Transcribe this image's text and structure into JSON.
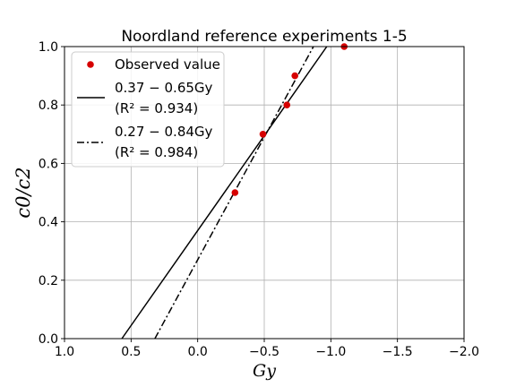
{
  "chart_data": {
    "type": "scatter",
    "title": "Noordland reference experiments 1-5",
    "xlabel": "Gy",
    "ylabel": "c0/c2",
    "xlim": [
      1.0,
      -2.0
    ],
    "ylim": [
      0.0,
      1.0
    ],
    "x_inverted": true,
    "x_ticks": [
      1.0,
      0.5,
      0.0,
      -0.5,
      -1.0,
      -1.5,
      -2.0
    ],
    "x_tick_labels": [
      "1.0",
      "0.5",
      "0.0",
      "−0.5",
      "−1.0",
      "−1.5",
      "−2.0"
    ],
    "y_ticks": [
      0.0,
      0.2,
      0.4,
      0.6,
      0.8,
      1.0
    ],
    "y_tick_labels": [
      "0.0",
      "0.2",
      "0.4",
      "0.6",
      "0.8",
      "1.0"
    ],
    "grid": true,
    "legend_position": "top-left",
    "points": {
      "name": "Observed value",
      "color": "#d60000",
      "x": [
        -0.28,
        -0.49,
        -0.67,
        -0.73,
        -1.1
      ],
      "y": [
        0.5,
        0.7,
        0.8,
        0.9,
        1.0
      ]
    },
    "lines": [
      {
        "label_formula": "0.37 − 0.65Gy",
        "label_r2": "(R² = 0.934)",
        "intercept": 0.37,
        "slope": -0.65,
        "style": "solid",
        "color": "#000000"
      },
      {
        "label_formula": "0.27 − 0.84Gy",
        "label_r2": "(R² = 0.984)",
        "intercept": 0.27,
        "slope": -0.84,
        "style": "dashdot",
        "color": "#000000"
      }
    ]
  }
}
